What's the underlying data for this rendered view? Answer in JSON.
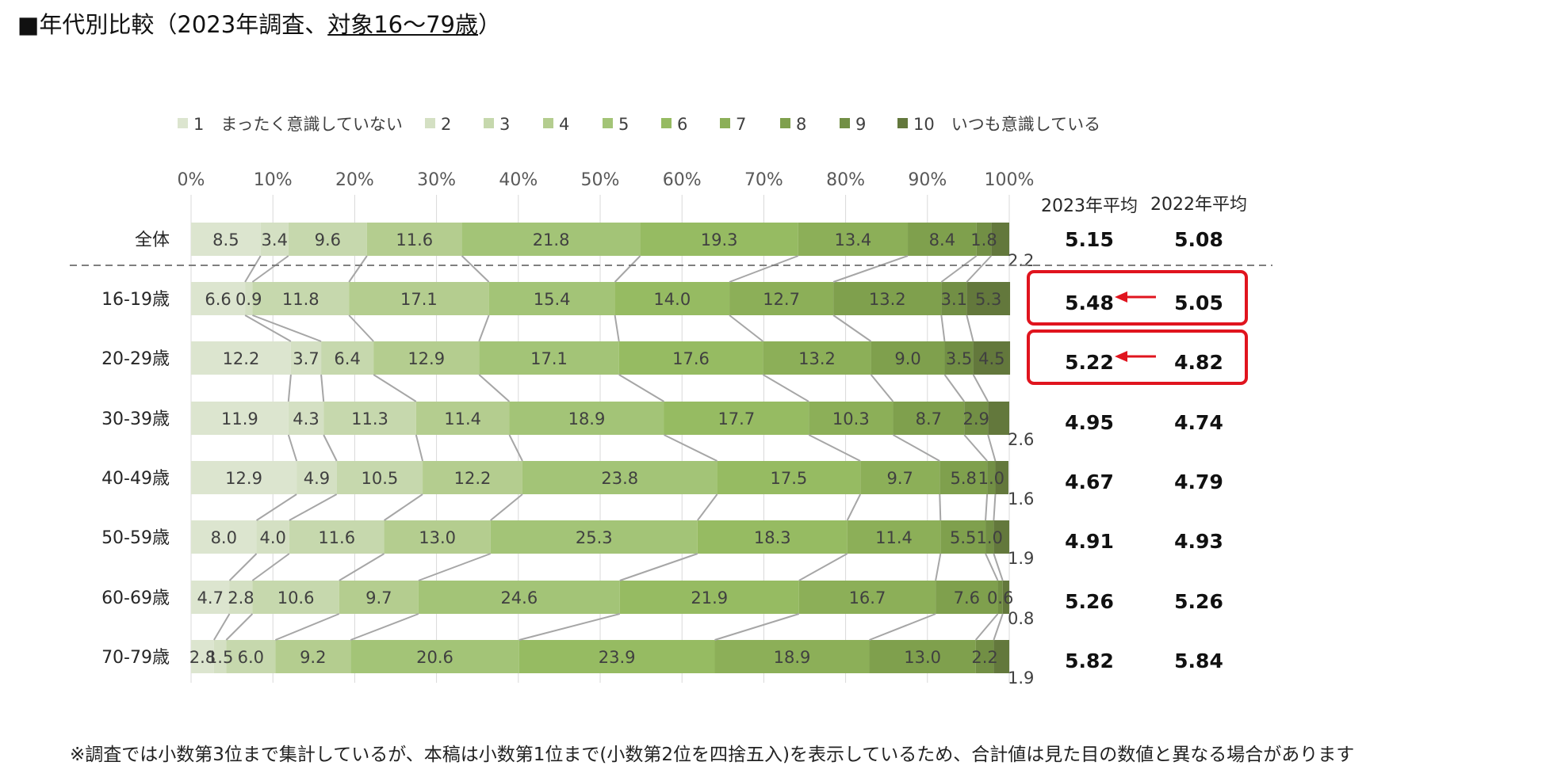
{
  "title": {
    "prefix": "■年代別比較（2023年調査、",
    "underlined": "対象16〜79歳",
    "suffix": "）"
  },
  "footnote": "※調査では小数第3位まで集計しているが、本稿は小数第1位まで(小数第2位を四捨五入)を表示しているため、合計値は見た目の数値と異なる場合があります",
  "avg_headers": {
    "y2023": "2023年平均",
    "y2022": "2022年平均"
  },
  "highlight_color": "#e0141e",
  "chart_data": {
    "type": "bar",
    "orientation": "horizontal",
    "stacked": "100%",
    "xlim": [
      0,
      100
    ],
    "x_ticks": [
      "0%",
      "10%",
      "20%",
      "30%",
      "40%",
      "50%",
      "60%",
      "70%",
      "80%",
      "90%",
      "100%"
    ],
    "grid": true,
    "legend_position": "top",
    "categories": [
      "全体",
      "16-19歳",
      "20-29歳",
      "30-39歳",
      "40-49歳",
      "50-59歳",
      "60-69歳",
      "70-79歳"
    ],
    "series": [
      {
        "name": "1　まったく意識していない",
        "color": "#dce5cf",
        "values": [
          8.5,
          6.6,
          12.2,
          11.9,
          12.9,
          8.0,
          4.7,
          2.8
        ]
      },
      {
        "name": "2",
        "color": "#d4e0c3",
        "values": [
          3.4,
          0.9,
          3.7,
          4.3,
          4.9,
          4.0,
          2.8,
          1.5
        ]
      },
      {
        "name": "3",
        "color": "#c6d8ad",
        "values": [
          9.6,
          11.8,
          6.4,
          11.3,
          10.5,
          11.6,
          10.6,
          6.0
        ]
      },
      {
        "name": "4",
        "color": "#b4cd8f",
        "values": [
          11.6,
          17.1,
          12.9,
          11.4,
          12.2,
          13.0,
          9.7,
          9.2
        ]
      },
      {
        "name": "5",
        "color": "#a3c477",
        "values": [
          21.8,
          15.4,
          17.1,
          18.9,
          23.8,
          25.3,
          24.6,
          20.6
        ]
      },
      {
        "name": "6",
        "color": "#96bb62",
        "values": [
          19.3,
          14.0,
          17.6,
          17.7,
          17.5,
          18.3,
          21.9,
          23.9
        ]
      },
      {
        "name": "7",
        "color": "#8caf58",
        "values": [
          13.4,
          12.7,
          13.2,
          10.3,
          9.7,
          11.4,
          16.7,
          18.9
        ]
      },
      {
        "name": "8",
        "color": "#7fa04d",
        "values": [
          8.4,
          13.2,
          9.0,
          8.7,
          5.8,
          5.5,
          7.6,
          13.0
        ]
      },
      {
        "name": "9",
        "color": "#728f45",
        "values": [
          1.8,
          3.1,
          3.5,
          2.9,
          1.0,
          1.0,
          0.6,
          2.2
        ]
      },
      {
        "name": "10　いつも意識している",
        "color": "#63783c",
        "values": [
          2.2,
          5.3,
          4.5,
          2.6,
          1.6,
          1.9,
          0.8,
          1.9
        ]
      }
    ],
    "avg_2023": [
      "5.15",
      "5.48",
      "5.22",
      "4.95",
      "4.67",
      "4.91",
      "5.26",
      "5.82"
    ],
    "avg_2022": [
      "5.08",
      "5.05",
      "4.82",
      "4.74",
      "4.79",
      "4.93",
      "5.26",
      "5.84"
    ],
    "highlighted_rows": [
      1,
      2
    ]
  }
}
